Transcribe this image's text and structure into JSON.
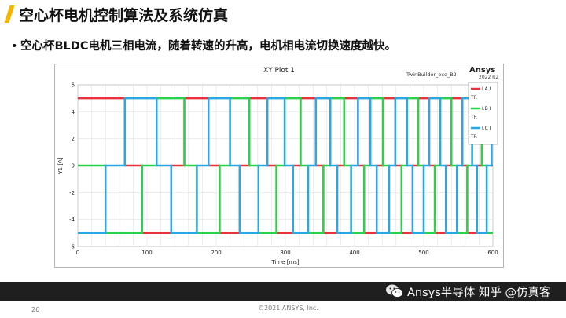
{
  "slide": {
    "title": "空心杯电机控制算法及系统仿真",
    "bullet": "空心杯BLDC电机三相电流，随着转速的升高，电机相电流切换速度越快。",
    "page_number": "26",
    "copyright": "©2021 ANSYS, Inc.",
    "watermark": "Ansys半导体  知乎 @仿真客"
  },
  "colors": {
    "accent": "#f5b400",
    "phase_a": "#e8323c",
    "phase_b": "#28d24a",
    "phase_c": "#2aa8e6",
    "band": "#1f1f1f"
  },
  "icons": [
    "wechat-icon"
  ],
  "chart_data": {
    "type": "line",
    "title": "XY Plot 1",
    "design_name": "TwinBuilder_ece_B2",
    "brand": "Ansys",
    "version": "2022 R2",
    "xlabel": "Time [ms]",
    "ylabel": "Y1 [A]",
    "xlim": [
      0,
      600
    ],
    "ylim": [
      -6,
      6
    ],
    "x_ticks": [
      0,
      100,
      200,
      300,
      400,
      500,
      600
    ],
    "y_ticks": [
      -6,
      -4,
      -2,
      0,
      2,
      4,
      6
    ],
    "grid": true,
    "legend_position": "top-right",
    "legend_sublabel": "TR",
    "amplitude": 5,
    "series": [
      {
        "name": "I_A",
        "legend": "I.A I",
        "color": "#e8323c"
      },
      {
        "name": "I_B",
        "legend": "I.B I",
        "color": "#28d24a"
      },
      {
        "name": "I_C",
        "legend": "I.C I",
        "color": "#2aa8e6"
      }
    ],
    "switch_times_ms": [
      0,
      40,
      68,
      93,
      114,
      135,
      154,
      172,
      189,
      205,
      220,
      234,
      248,
      261,
      274,
      287,
      299,
      311,
      322,
      333,
      344,
      355,
      365,
      375,
      385,
      395,
      405,
      414,
      423,
      432,
      441,
      450,
      459,
      468,
      476,
      484,
      492,
      500,
      508,
      516,
      524,
      532,
      540,
      548,
      556,
      563,
      570,
      577,
      584,
      591,
      598,
      600
    ],
    "sector_states": [
      [
        1,
        0,
        -1
      ],
      [
        1,
        -1,
        0
      ],
      [
        0,
        -1,
        1
      ],
      [
        -1,
        0,
        1
      ],
      [
        -1,
        1,
        0
      ],
      [
        0,
        1,
        -1
      ]
    ]
  }
}
